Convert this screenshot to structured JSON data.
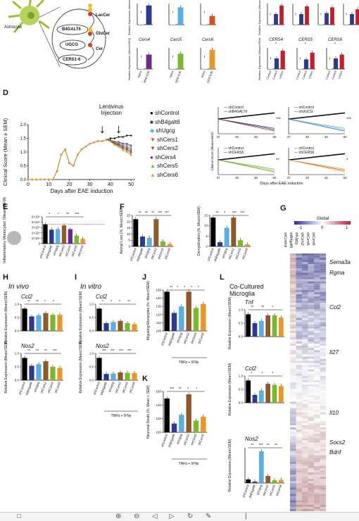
{
  "panel_labels": {
    "D": "D",
    "E": "E",
    "F": "F",
    "G": "G",
    "H": "H",
    "I": "I",
    "J": "J",
    "K": "K",
    "L": "L"
  },
  "top": {
    "astrocyte": "Astrocyte",
    "enzymes": [
      "B4GALT6",
      "UGCG",
      "CERS1-6"
    ],
    "lipids": [
      "LacCer",
      "GluCer",
      "Cer"
    ],
    "ylabel_mean": "Relative Expression (Mean±SEM)",
    "left_genes_row2": [
      "Cers4",
      "Cers5",
      "Cers6"
    ],
    "right_genes_row2": [
      "CERS4",
      "CERS5",
      "CERS6"
    ],
    "left_x": [
      "Naive",
      "NOD EAE"
    ],
    "right_x": [
      "Control",
      "Control",
      "Lesion"
    ],
    "sig": "**",
    "sig2": "*"
  },
  "D": {
    "ylabel": "Clinical Score (Mean ± SEM)",
    "xlabel": "Days after EAE induction",
    "annotation": "Lentivirus Injection",
    "xticks": [
      "0",
      "10",
      "20",
      "30",
      "40",
      "50"
    ],
    "yticks": [
      "0.0",
      "0.5",
      "1.0",
      "1.5",
      "2.0"
    ],
    "legend": [
      {
        "name": "shControl",
        "color": "#000000",
        "shape": "circle"
      },
      {
        "name": "shB4galt6",
        "color": "#2b3a8c",
        "shape": "square"
      },
      {
        "name": "shUgcg",
        "color": "#5aaee0",
        "shape": "diamond"
      },
      {
        "name": "shCers1",
        "color": "#d94e1f",
        "shape": "tri-down"
      },
      {
        "name": "shCers2",
        "color": "#8c5a2b",
        "shape": "tri-down"
      },
      {
        "name": "shCers4",
        "color": "#6a2c8c",
        "shape": "circle"
      },
      {
        "name": "shCers5",
        "color": "#7ab82e",
        "shape": "tri-up"
      },
      {
        "name": "shCers6",
        "color": "#e8952a",
        "shape": "tri-up"
      }
    ],
    "small_panels": [
      {
        "l1": "shControl",
        "l2": "shB4GALT6",
        "sig": "***"
      },
      {
        "l1": "shControl",
        "l2": "shUGCG",
        "sig": "***"
      },
      {
        "l1": "shControl",
        "l2": "shCERS5",
        "sig": "**"
      },
      {
        "l1": "shControl",
        "l2": "shCERS6",
        "sig": "*"
      }
    ],
    "small_xticks": [
      "37",
      "40",
      "45",
      "50"
    ],
    "small_ylabel": "Clinical Score (Mean±SEM)",
    "small_xlabel": "Days after EAE induction"
  },
  "E": {
    "ylabel": "Inflammatory Monocytes (Mean±SEM)",
    "yticks": [
      "5×10⁴",
      "4×10⁴",
      "3×10⁴",
      "2×10⁴",
      "1×10⁴",
      "0"
    ],
    "cats": [
      "shControl",
      "shB4galt6",
      "shUgcg",
      "shCers2",
      "shCers4",
      "shCers5",
      "shCers6"
    ],
    "values": [
      3.6,
      2.6,
      2.7,
      3.4,
      2.7,
      1.5,
      0.9
    ],
    "colors": [
      "#000",
      "#2b3a8c",
      "#5aaee0",
      "#8c5a2b",
      "#6a2c8c",
      "#7ab82e",
      "#e8952a"
    ],
    "sig": [
      "*",
      "*",
      "**",
      "***"
    ]
  },
  "F": {
    "left": {
      "ylabel": "Axonal Loss (%, Mean±SEM)",
      "yticks": [
        "25",
        "20",
        "15",
        "10",
        "5",
        "0"
      ],
      "cats": [
        "shControl",
        "shB4galt6",
        "shUgcg",
        "shCers2",
        "shCers5",
        "shCers6"
      ],
      "values": [
        22,
        8,
        7,
        22,
        4,
        2
      ]
    },
    "right": {
      "ylabel": "Demyelination (%, Mean±SEM)",
      "yticks": [
        "15",
        "10",
        "5",
        "0"
      ],
      "cats": [
        "shControl",
        "shB4galt6",
        "shUgcg",
        "shCers2",
        "shCers5",
        "shCers6"
      ],
      "values": [
        14,
        2,
        9,
        14,
        3,
        1
      ]
    },
    "colors": [
      "#000",
      "#2b3a8c",
      "#5aaee0",
      "#8c5a2b",
      "#7ab82e",
      "#e8952a"
    ],
    "sig": [
      "**",
      "**",
      "**",
      "***",
      "***",
      "**",
      "*",
      "***",
      "***"
    ]
  },
  "G": {
    "title": "Global",
    "scale": [
      "-1",
      "0",
      "1"
    ],
    "cols": [
      "shControl",
      "shB4galt6",
      "shUgcg",
      "shCers2",
      "shCers5",
      "shCers6"
    ],
    "genes": [
      "Sema3a",
      "Rgma",
      "Ccl2",
      "Il27",
      "Il10",
      "Socs2",
      "Bdnf"
    ]
  },
  "H": {
    "title": "In vivo",
    "g1": "Ccl2",
    "g2": "Nos2",
    "ylabel": "Relative Expression (Mean±SEM)",
    "cats": [
      "shControl",
      "shB4galt6",
      "shUgcg",
      "shCers2",
      "shCers5",
      "shCers6"
    ],
    "v1": [
      1.0,
      0.65,
      0.7,
      0.8,
      0.72,
      0.72
    ],
    "v2": [
      1.0,
      0.65,
      0.72,
      0.85,
      0.6,
      0.55
    ],
    "yticks": [
      "1.0",
      "0.5",
      "0.0"
    ]
  },
  "I": {
    "title": "In vitro",
    "g1": "Ccl2",
    "g2": "Nos2",
    "ylabel": "Relative Expression (Mean±SEM)",
    "cats": [
      "shControl",
      "shB4galt6",
      "shUgcg",
      "shCers2",
      "shCers5",
      "shCers6"
    ],
    "v1": [
      1.0,
      0.35,
      0.4,
      0.45,
      0.35,
      0.3
    ],
    "v2": [
      1.0,
      0.28,
      0.3,
      0.35,
      0.33,
      0.32
    ],
    "yticks": [
      "1.0",
      "0.5",
      "0.0"
    ],
    "treat": "TNFα + IFNγ"
  },
  "J": {
    "ylabel": "Migrating Monocytes (%, Mean±SEM)",
    "treat": "TNFα + IFNγ",
    "cats": [
      "shControl",
      "shB4galt6",
      "shUgcg",
      "shCers2",
      "shCers5",
      "shCers6"
    ],
    "values": [
      148,
      122,
      130,
      148,
      128,
      133
    ],
    "yticks": [
      "150",
      "140",
      "130",
      "120",
      "110",
      "100"
    ]
  },
  "K": {
    "ylabel": "Neuronal Death (%, Mean ± SEM)",
    "treat": "TNFα + IFNγ",
    "cats": [
      "shControl",
      "shB4galt6",
      "shUgcg",
      "shCers2",
      "shCers5",
      "shCers6"
    ],
    "values": [
      158,
      115,
      130,
      165,
      120,
      127
    ],
    "yticks": [
      "160",
      "140",
      "120",
      "100"
    ]
  },
  "L": {
    "title1": "Co-Cultured",
    "title2": "Microglia",
    "g1": "Tnf",
    "g2": "Ccl2",
    "g3": "Nos2",
    "ylabel": "Relative Expression (Mean±SEM)",
    "cats": [
      "shControl",
      "shB4galt6",
      "shUgcg",
      "shCers2",
      "shCers5",
      "shCers6"
    ],
    "v1": [
      1.0,
      0.6,
      0.7,
      0.95,
      0.95,
      0.85
    ],
    "v2": [
      1.0,
      0.35,
      0.55,
      0.85,
      0.8,
      0.75
    ],
    "v3": [
      1.0,
      0.4,
      9.0,
      2.0,
      0.8,
      0.9
    ],
    "yticks": [
      "1.0",
      "0.5",
      "0.0"
    ]
  },
  "toolbar": {
    "icons": [
      "square-icon",
      "zoom-in-icon",
      "zoom-out-icon",
      "prev-icon",
      "next-icon",
      "rotate-icon",
      "edit-icon"
    ]
  }
}
